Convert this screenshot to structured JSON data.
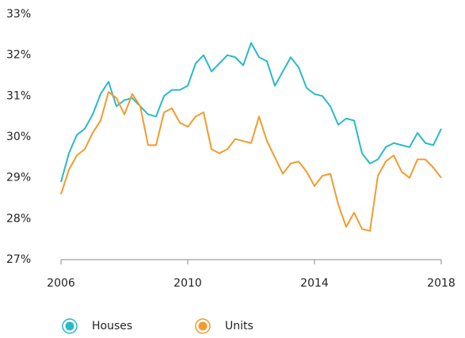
{
  "chart_data": {
    "type": "line",
    "x": [
      2006,
      2006.25,
      2006.5,
      2006.75,
      2007,
      2007.25,
      2007.5,
      2007.75,
      2008,
      2008.25,
      2008.5,
      2008.75,
      2009,
      2009.25,
      2009.5,
      2009.75,
      2010,
      2010.25,
      2010.5,
      2010.75,
      2011,
      2011.25,
      2011.5,
      2011.75,
      2012,
      2012.25,
      2012.5,
      2012.75,
      2013,
      2013.25,
      2013.5,
      2013.75,
      2014,
      2014.25,
      2014.5,
      2014.75,
      2015,
      2015.25,
      2015.5,
      2015.75,
      2016,
      2016.25,
      2016.5,
      2016.75,
      2017,
      2017.25,
      2017.5,
      2017.75,
      2018
    ],
    "series": [
      {
        "name": "Houses",
        "color": "#29b9c9",
        "values": [
          28.9,
          29.6,
          30.05,
          30.2,
          30.55,
          31.05,
          31.35,
          30.75,
          30.9,
          30.95,
          30.75,
          30.55,
          30.5,
          31.0,
          31.15,
          31.15,
          31.25,
          31.8,
          32.0,
          31.6,
          31.8,
          32.0,
          31.95,
          31.75,
          32.3,
          31.95,
          31.85,
          31.25,
          31.6,
          31.95,
          31.7,
          31.2,
          31.05,
          31.0,
          30.75,
          30.3,
          30.45,
          30.4,
          29.6,
          29.35,
          29.45,
          29.75,
          29.85,
          29.8,
          29.75,
          30.1,
          29.85,
          29.8,
          30.2
        ]
      },
      {
        "name": "Units",
        "color": "#f29b2c",
        "values": [
          28.6,
          29.2,
          29.55,
          29.7,
          30.1,
          30.4,
          31.1,
          30.95,
          30.55,
          31.05,
          30.75,
          29.8,
          29.8,
          30.6,
          30.7,
          30.35,
          30.25,
          30.5,
          30.6,
          29.7,
          29.6,
          29.7,
          29.95,
          29.9,
          29.85,
          30.5,
          29.9,
          29.5,
          29.1,
          29.35,
          29.4,
          29.15,
          28.8,
          29.05,
          29.1,
          28.35,
          27.8,
          28.15,
          27.75,
          27.7,
          29.05,
          29.4,
          29.55,
          29.15,
          29.0,
          29.45,
          29.45,
          29.25,
          29.0
        ]
      }
    ],
    "xlim": [
      2006,
      2018
    ],
    "xticks": [
      2006,
      2010,
      2014,
      2018
    ],
    "ylim": [
      27,
      33
    ],
    "yticks": [
      {
        "value": 27,
        "label": "27%"
      },
      {
        "value": 28,
        "label": "28%"
      },
      {
        "value": 29,
        "label": "29%"
      },
      {
        "value": 30,
        "label": "30%"
      },
      {
        "value": 31,
        "label": "31%"
      },
      {
        "value": 32,
        "label": "32%"
      },
      {
        "value": 33,
        "label": "33%"
      }
    ],
    "grid": false,
    "legend": "bottom"
  }
}
